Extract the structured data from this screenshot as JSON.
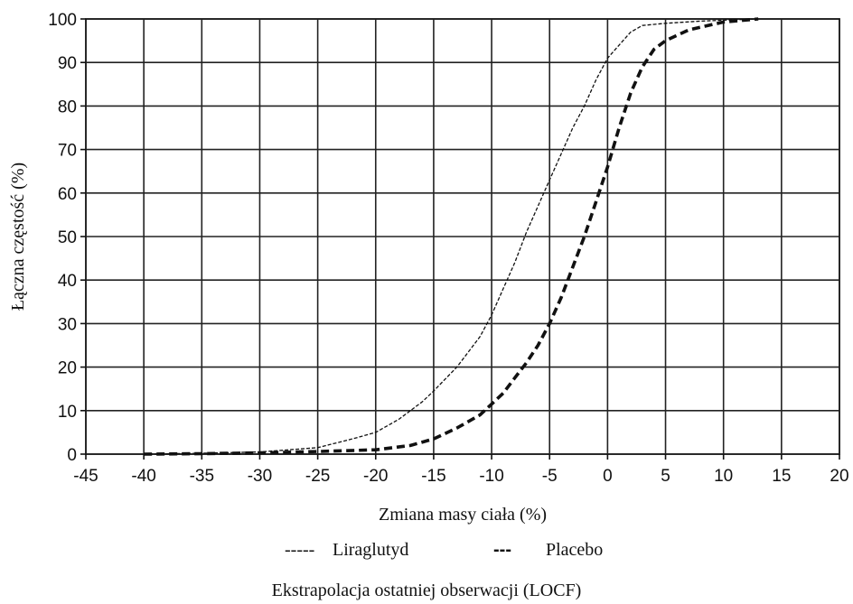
{
  "chart_data": {
    "type": "line",
    "xlabel": "Zmiana masy ciała (%)",
    "ylabel": "Łączna częstość (%)",
    "xlim": [
      -45,
      20
    ],
    "ylim": [
      0,
      100
    ],
    "x_ticks": [
      -45,
      -40,
      -35,
      -30,
      -25,
      -20,
      -15,
      -10,
      -5,
      0,
      5,
      10,
      15,
      20
    ],
    "y_ticks": [
      0,
      10,
      20,
      30,
      40,
      50,
      60,
      70,
      80,
      90,
      100
    ],
    "grid": true,
    "legend_position": "bottom",
    "series": [
      {
        "name": "Liraglutyd",
        "style": "thin-dashed",
        "legend_sample": "-----",
        "x": [
          -40,
          -35,
          -30,
          -25,
          -22,
          -20,
          -18,
          -16,
          -15,
          -13,
          -11,
          -10,
          -9,
          -8,
          -7,
          -6,
          -5,
          -4,
          -3,
          -2,
          -1,
          0,
          1,
          2,
          3,
          5,
          8,
          10,
          12,
          13
        ],
        "y": [
          0,
          0.2,
          0.5,
          1.5,
          3.5,
          5,
          8,
          12,
          14.5,
          20,
          27,
          32,
          38,
          44,
          51,
          57,
          63,
          69,
          75,
          80,
          86,
          91,
          94,
          97,
          98.5,
          99,
          99.5,
          99.7,
          99.9,
          100
        ]
      },
      {
        "name": "Placebo",
        "style": "thick-dashed",
        "legend_sample": "---",
        "x": [
          -40,
          -35,
          -30,
          -25,
          -20,
          -17,
          -15,
          -13,
          -11,
          -10,
          -9,
          -8,
          -7,
          -6,
          -5,
          -4,
          -3,
          -2,
          -1,
          0,
          1,
          2,
          3,
          4,
          5,
          7,
          10,
          13
        ],
        "y": [
          0,
          0.1,
          0.3,
          0.6,
          1,
          2,
          3.5,
          6,
          9,
          11.5,
          14,
          17.5,
          21,
          25,
          30,
          36,
          43,
          50,
          58,
          66,
          75,
          83,
          89,
          93,
          95,
          97.5,
          99.3,
          100
        ]
      }
    ],
    "footnote": "Ekstrapolacja ostatniej obserwacji (LOCF)"
  }
}
